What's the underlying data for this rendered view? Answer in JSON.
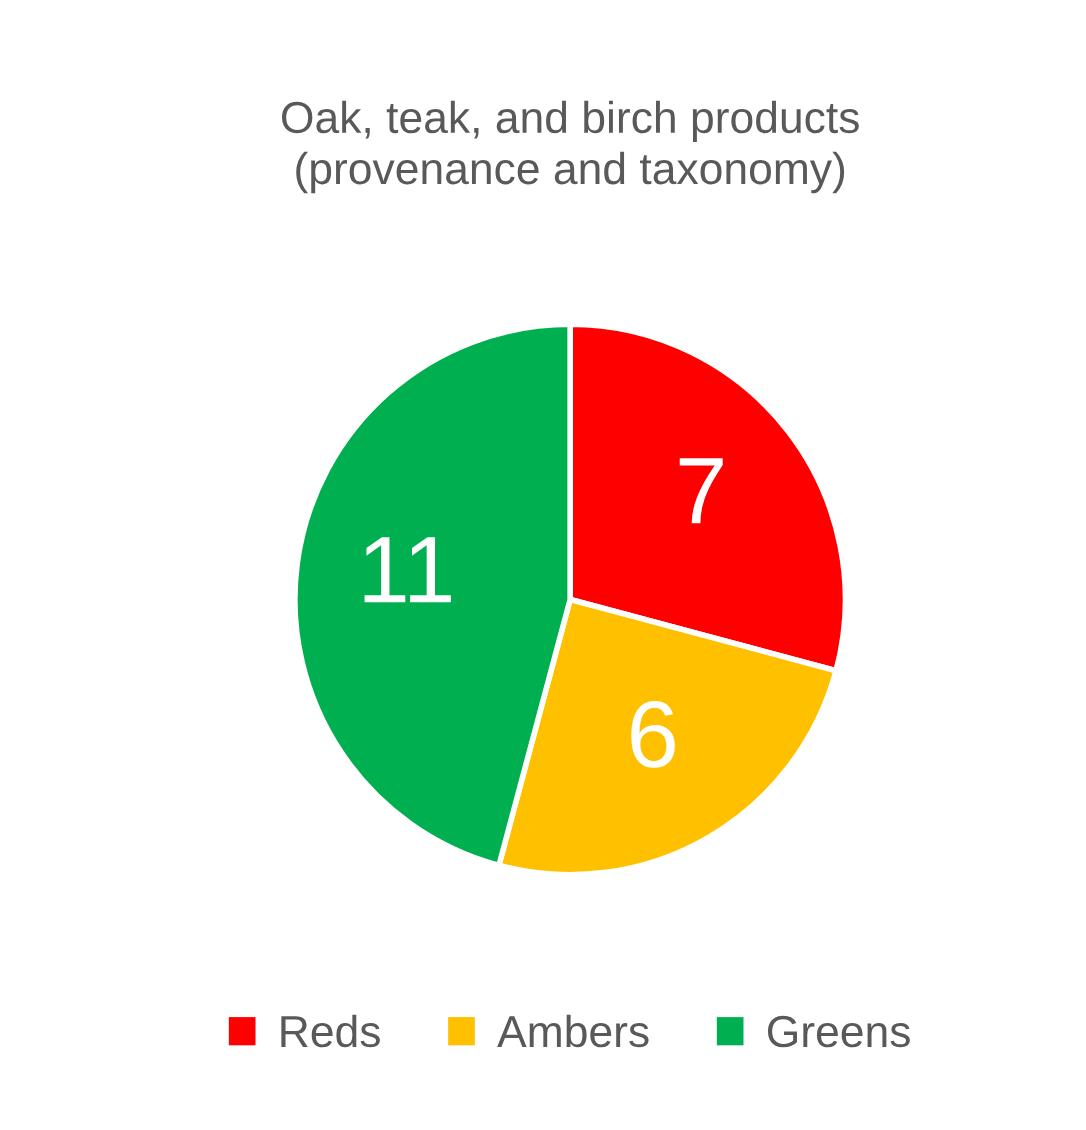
{
  "chart_data": {
    "type": "pie",
    "title": "Oak, teak, and birch products\n(provenance and taxonomy)",
    "categories": [
      "Reds",
      "Ambers",
      "Greens"
    ],
    "values": [
      7,
      6,
      11
    ],
    "colors": [
      "#ff0000",
      "#ffc000",
      "#00b050"
    ],
    "data_labels": true,
    "legend": "bottom"
  }
}
